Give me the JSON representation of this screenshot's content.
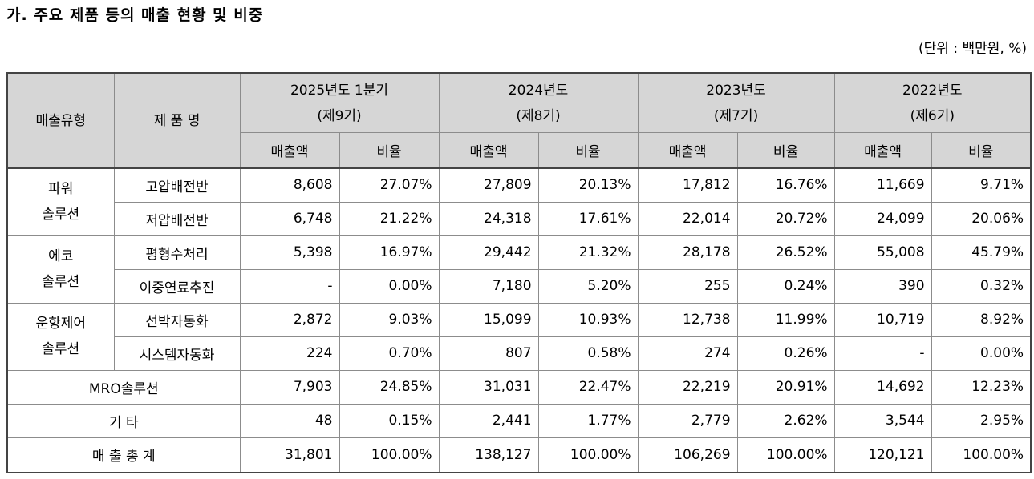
{
  "heading": "가. 주요 제품 등의 매출 현황 및 비중",
  "unit": "(단위 : 백만원, %)",
  "table": {
    "col_type": "매출유형",
    "col_product": "제 품 명",
    "periods": [
      {
        "year": "2025년도 1분기",
        "term": "(제9기)"
      },
      {
        "year": "2024년도",
        "term": "(제8기)"
      },
      {
        "year": "2023년도",
        "term": "(제7기)"
      },
      {
        "year": "2022년도",
        "term": "(제6기)"
      }
    ],
    "sub_amount": "매출액",
    "sub_ratio": "비율",
    "groups": [
      {
        "type_line1": "파워",
        "type_line2": "솔루션",
        "rows": [
          {
            "product": "고압배전반",
            "values": [
              "8,608",
              "27.07%",
              "27,809",
              "20.13%",
              "17,812",
              "16.76%",
              "11,669",
              "9.71%"
            ]
          },
          {
            "product": "저압배전반",
            "values": [
              "6,748",
              "21.22%",
              "24,318",
              "17.61%",
              "22,014",
              "20.72%",
              "24,099",
              "20.06%"
            ]
          }
        ]
      },
      {
        "type_line1": "에코",
        "type_line2": "솔루션",
        "rows": [
          {
            "product": "평형수처리",
            "values": [
              "5,398",
              "16.97%",
              "29,442",
              "21.32%",
              "28,178",
              "26.52%",
              "55,008",
              "45.79%"
            ]
          },
          {
            "product": "이중연료추진",
            "values": [
              "-",
              "0.00%",
              "7,180",
              "5.20%",
              "255",
              "0.24%",
              "390",
              "0.32%"
            ]
          }
        ]
      },
      {
        "type_line1": "운항제어",
        "type_line2": "솔루션",
        "rows": [
          {
            "product": "선박자동화",
            "values": [
              "2,872",
              "9.03%",
              "15,099",
              "10.93%",
              "12,738",
              "11.99%",
              "10,719",
              "8.92%"
            ]
          },
          {
            "product": "시스템자동화",
            "values": [
              "224",
              "0.70%",
              "807",
              "0.58%",
              "274",
              "0.26%",
              "-",
              "0.00%"
            ]
          }
        ]
      }
    ],
    "single_rows": [
      {
        "label": "MRO솔루션",
        "values": [
          "7,903",
          "24.85%",
          "31,031",
          "22.47%",
          "22,219",
          "20.91%",
          "14,692",
          "12.23%"
        ]
      },
      {
        "label": "기 타",
        "values": [
          "48",
          "0.15%",
          "2,441",
          "1.77%",
          "2,779",
          "2.62%",
          "3,544",
          "2.95%"
        ]
      },
      {
        "label": "매 출 총 계",
        "values": [
          "31,801",
          "100.00%",
          "138,127",
          "100.00%",
          "106,269",
          "100.00%",
          "120,121",
          "100.00%"
        ]
      }
    ]
  }
}
